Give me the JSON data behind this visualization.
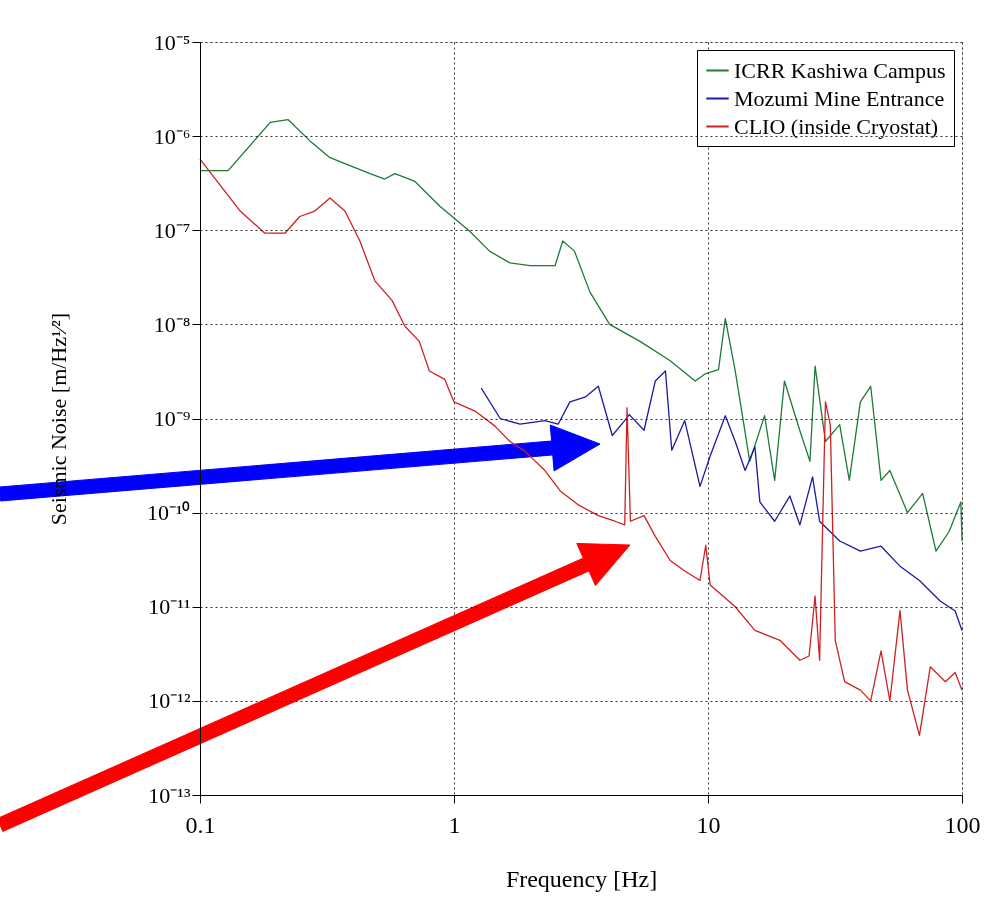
{
  "chart_data": {
    "type": "line",
    "xlabel": "Frequency [Hz]",
    "ylabel": "Seismic Noise [m/Hz¹⁄²]",
    "log": "xy",
    "grid": true,
    "legend": "top right",
    "line_style": "solid",
    "marker": "none",
    "xlim": [
      0.1,
      100
    ],
    "xticks": [
      0.1,
      1,
      10,
      100
    ],
    "ylim": [
      1e-13,
      1e-05
    ],
    "yticks": [
      {
        "value": 1e-13,
        "label": "10⁻¹³"
      },
      {
        "value": 1e-12,
        "label": "10⁻¹²"
      },
      {
        "value": 1e-11,
        "label": "10⁻¹¹"
      },
      {
        "value": 1e-10,
        "label": "10⁻¹⁰"
      },
      {
        "value": 1e-09,
        "label": "10⁻⁹"
      },
      {
        "value": 1e-08,
        "label": "10⁻⁸"
      },
      {
        "value": 1e-07,
        "label": "10⁻⁷"
      },
      {
        "value": 1e-06,
        "label": "10⁻⁶"
      },
      {
        "value": 1e-05,
        "label": "10⁻⁵"
      }
    ],
    "series": [
      {
        "name": "ICRR Kashiwa Campus",
        "color": "#1e7a34",
        "x": [
          0.1,
          0.129,
          0.189,
          0.222,
          0.271,
          0.325,
          0.467,
          0.534,
          0.585,
          0.702,
          0.88,
          1.15,
          1.38,
          1.66,
          1.99,
          2.5,
          2.68,
          2.98,
          3.43,
          4.1,
          5.4,
          7.1,
          8.9,
          9.8,
          11.0,
          11.7,
          12.8,
          14.6,
          16.7,
          18.3,
          20.0,
          23,
          25.2,
          26.4,
          29,
          33,
          36,
          39.8,
          43.7,
          48,
          52,
          61,
          70,
          79,
          89,
          99,
          100
        ],
        "values": [
          4.3e-07,
          4.3e-07,
          1.4e-06,
          1.5e-06,
          8.9e-07,
          5.9e-07,
          4e-07,
          3.5e-07,
          4e-07,
          3.3e-07,
          1.8e-07,
          9.8e-08,
          6e-08,
          4.5e-08,
          4.2e-08,
          4.2e-08,
          7.7e-08,
          6e-08,
          2.2e-08,
          1e-08,
          6.6e-09,
          4.1e-09,
          2.5e-09,
          3e-09,
          3.3e-09,
          1.15e-08,
          3.2e-09,
          3.5e-10,
          1.07e-09,
          2.2e-10,
          2.5e-09,
          7.4e-10,
          3.5e-10,
          3.6e-09,
          5.7e-10,
          8.6e-10,
          2.2e-10,
          1.5e-09,
          2.2e-09,
          2.2e-10,
          2.8e-10,
          1e-10,
          1.6e-10,
          3.9e-11,
          6.3e-11,
          1.3e-10,
          5e-11
        ]
      },
      {
        "name": "Mozumi Mine Entrance",
        "color": "#1a1aa0",
        "x": [
          1.28,
          1.52,
          1.82,
          2.28,
          2.57,
          2.86,
          3.3,
          3.7,
          4.2,
          4.7,
          4.9,
          5.6,
          6.2,
          6.8,
          7.2,
          8.1,
          9.3,
          10.2,
          11.7,
          12.8,
          14.0,
          15.3,
          16.0,
          18.3,
          21,
          23,
          25.8,
          27.5,
          33,
          39.8,
          48,
          57,
          68,
          82,
          94,
          100
        ],
        "values": [
          2.1e-09,
          1e-09,
          8.7e-10,
          9.5e-10,
          8.7e-10,
          1.5e-09,
          1.7e-09,
          2.2e-09,
          6.6e-10,
          9.5e-10,
          1.1e-09,
          7.5e-10,
          2.5e-09,
          3.2e-09,
          4.6e-10,
          9.5e-10,
          1.9e-10,
          4e-10,
          1.07e-09,
          5.7e-10,
          2.8e-10,
          5e-10,
          1.3e-10,
          8.1e-11,
          1.5e-10,
          7.4e-11,
          2.4e-10,
          8.1e-11,
          5e-11,
          3.9e-11,
          4.4e-11,
          2.7e-11,
          1.9e-11,
          1.15e-11,
          9e-12,
          5.6e-12
        ]
      },
      {
        "name": "CLIO (inside Cryostat)",
        "color": "#cc2222",
        "x": [
          0.1,
          0.144,
          0.18,
          0.216,
          0.247,
          0.283,
          0.325,
          0.372,
          0.426,
          0.488,
          0.57,
          0.64,
          0.73,
          0.8,
          0.92,
          1.0,
          1.21,
          1.45,
          1.66,
          1.9,
          2.28,
          2.62,
          3.1,
          3.7,
          4.3,
          4.7,
          4.8,
          4.95,
          5.6,
          6.2,
          7.1,
          8.1,
          9.3,
          9.8,
          10.2,
          12.8,
          15.3,
          19.2,
          23,
          25,
          26.4,
          27.5,
          29,
          30.3,
          31.7,
          34.5,
          39.8,
          43.7,
          48,
          52,
          57,
          61,
          68,
          75,
          86,
          94,
          100
        ],
        "values": [
          5.7e-07,
          1.6e-07,
          9.3e-08,
          9.3e-08,
          1.4e-07,
          1.6e-07,
          2.2e-07,
          1.6e-07,
          7.7e-08,
          2.9e-08,
          1.8e-08,
          9.6e-09,
          6.6e-09,
          3.2e-09,
          2.6e-09,
          1.5e-09,
          1.2e-09,
          8.3e-10,
          5.7e-10,
          4.5e-10,
          2.8e-10,
          1.7e-10,
          1.2e-10,
          9.3e-11,
          8.1e-11,
          7.4e-11,
          1.3e-09,
          8.1e-11,
          9.3e-11,
          5.6e-11,
          3.1e-11,
          2.4e-11,
          1.9e-11,
          4.5e-11,
          1.7e-11,
          1e-11,
          5.6e-12,
          4.4e-12,
          2.7e-12,
          3e-12,
          1.3e-11,
          2.7e-12,
          1.5e-09,
          8.6e-10,
          4.4e-12,
          1.6e-12,
          1.3e-12,
          1e-12,
          3.4e-12,
          1e-12,
          9.1e-12,
          1.3e-12,
          4.3e-13,
          2.3e-12,
          1.6e-12,
          2e-12,
          1.3e-12
        ]
      }
    ]
  }
}
